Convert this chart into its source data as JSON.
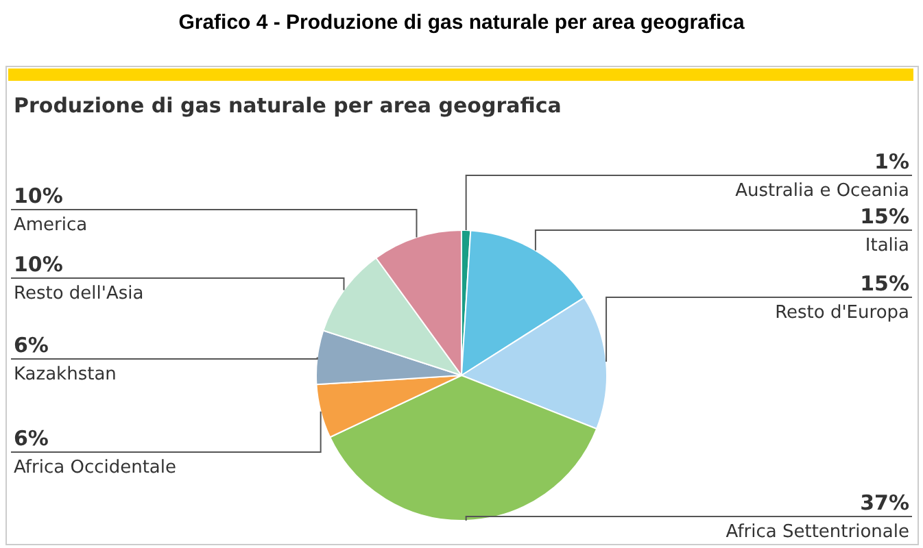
{
  "chart_data": {
    "type": "pie",
    "title": "Grafico 4 - Produzione di gas naturale per area geografica",
    "subtitle": "Produzione di gas naturale per area geografica",
    "categories": [
      "Australia e Oceania",
      "Italia",
      "Resto d'Europa",
      "Africa Settentrionale",
      "Africa Occidentale",
      "Kazakhstan",
      "Resto dell'Asia",
      "America"
    ],
    "values": [
      1,
      15,
      15,
      37,
      6,
      6,
      10,
      10
    ],
    "colors": [
      "#1a9e86",
      "#5fc2e4",
      "#acd6f2",
      "#8dc65b",
      "#f6a043",
      "#8ea9c1",
      "#bfe4d0",
      "#d98b99"
    ],
    "value_labels": [
      "1%",
      "15%",
      "15%",
      "37%",
      "6%",
      "6%",
      "10%",
      "10%"
    ],
    "legend": false
  }
}
